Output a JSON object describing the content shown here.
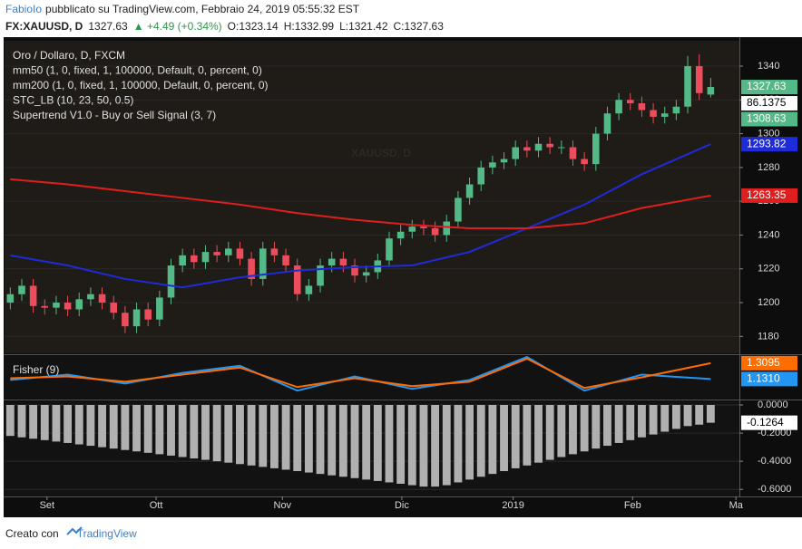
{
  "header": {
    "author": "FabioIo",
    "published": "pubblicato su TradingView.com, Febbraio 24, 2019 05:55:32 EST",
    "symbol": "FX:XAUUSD, D",
    "last": "1327.63",
    "change": "▲ +4.49 (+0.34%)",
    "open": "O:1323.14",
    "high": "H:1332.99",
    "low": "L:1321.42",
    "close": "C:1327.63"
  },
  "footer": {
    "prefix": "Creato con",
    "brand": "TradingView"
  },
  "chart_data": [
    {
      "type": "candlestick",
      "title": "Oro / Dollaro, D, FXCM",
      "watermark": "XAUUSD, D",
      "indicators": [
        "STC_LB (10, 23, 50, 0.5)",
        "Supertrend V1.0 - Buy or Sell Signal (3, 7)"
      ],
      "up_color": "#53b987",
      "down_color": "#eb4d5c",
      "xlim": [
        -0.5,
        63.5
      ],
      "xticks": [
        {
          "value": 3.2,
          "label": "Set"
        },
        {
          "value": 12.7,
          "label": "Ott"
        },
        {
          "value": 23.7,
          "label": "Nov"
        },
        {
          "value": 34.1,
          "label": "Dic"
        },
        {
          "value": 43.8,
          "label": "2019"
        },
        {
          "value": 54.2,
          "label": "Feb"
        },
        {
          "value": 63.2,
          "label": "Ma"
        }
      ],
      "ylim": [
        1170,
        1355
      ],
      "yticks": [
        1180,
        1200,
        1220,
        1240,
        1260,
        1280,
        1300,
        1320,
        1340
      ],
      "open": [
        1200,
        1205,
        1210,
        1198,
        1197,
        1200,
        1196,
        1202,
        1205,
        1200,
        1194,
        1186,
        1196,
        1190,
        1203,
        1222,
        1228,
        1224,
        1230,
        1228,
        1232,
        1226,
        1214,
        1232,
        1228,
        1222,
        1205,
        1210,
        1222,
        1226,
        1222,
        1216,
        1218,
        1225,
        1238,
        1242,
        1245,
        1244,
        1240,
        1248,
        1262,
        1270,
        1280,
        1283,
        1285,
        1292,
        1290,
        1294,
        1292,
        1292,
        1285,
        1282,
        1300,
        1312,
        1320,
        1318,
        1314,
        1310,
        1312,
        1316,
        1340,
        1323.14
      ],
      "high": [
        1209,
        1214,
        1214,
        1202,
        1204,
        1204,
        1206,
        1209,
        1209,
        1204,
        1198,
        1200,
        1200,
        1207,
        1226,
        1232,
        1232,
        1234,
        1234,
        1236,
        1236,
        1230,
        1236,
        1236,
        1232,
        1226,
        1214,
        1226,
        1230,
        1230,
        1226,
        1222,
        1229,
        1242,
        1246,
        1249,
        1249,
        1248,
        1252,
        1266,
        1274,
        1284,
        1287,
        1289,
        1296,
        1296,
        1298,
        1298,
        1296,
        1296,
        1289,
        1304,
        1316,
        1324,
        1324,
        1322,
        1318,
        1316,
        1320,
        1346,
        1347,
        1332.99
      ],
      "low": [
        1196,
        1201,
        1194,
        1193,
        1193,
        1192,
        1192,
        1198,
        1196,
        1190,
        1182,
        1182,
        1186,
        1186,
        1199,
        1218,
        1220,
        1220,
        1224,
        1224,
        1222,
        1210,
        1210,
        1224,
        1218,
        1201,
        1201,
        1206,
        1218,
        1218,
        1212,
        1212,
        1214,
        1221,
        1234,
        1238,
        1240,
        1236,
        1236,
        1244,
        1258,
        1266,
        1276,
        1279,
        1281,
        1286,
        1286,
        1288,
        1288,
        1281,
        1278,
        1278,
        1296,
        1308,
        1314,
        1310,
        1306,
        1306,
        1308,
        1312,
        1320,
        1321.42
      ],
      "close": [
        1205,
        1210,
        1198,
        1197,
        1200,
        1196,
        1202,
        1205,
        1200,
        1194,
        1186,
        1196,
        1190,
        1203,
        1222,
        1228,
        1224,
        1230,
        1228,
        1232,
        1226,
        1214,
        1232,
        1228,
        1222,
        1205,
        1210,
        1222,
        1226,
        1222,
        1216,
        1218,
        1225,
        1238,
        1242,
        1245,
        1244,
        1240,
        1248,
        1262,
        1270,
        1280,
        1283,
        1285,
        1292,
        1290,
        1294,
        1292,
        1292,
        1285,
        1282,
        1300,
        1312,
        1320,
        1318,
        1314,
        1310,
        1312,
        1316,
        1340,
        1324,
        1327.63
      ],
      "series": [
        {
          "name": "mm50 (1, 0, fixed, 1, 100000, Default, 0, percent, 0)",
          "color": "#1e2bd8",
          "x": [
            0,
            5,
            10,
            15,
            20,
            25,
            30,
            35,
            40,
            45,
            50,
            55,
            61
          ],
          "values": [
            1228,
            1222,
            1214,
            1209,
            1215,
            1219,
            1221,
            1222,
            1230,
            1244,
            1258,
            1276,
            1293.82
          ]
        },
        {
          "name": "mm200 (1, 0, fixed, 1, 100000, Default, 0, percent, 0)",
          "color": "#e01e1e",
          "x": [
            0,
            5,
            10,
            15,
            20,
            25,
            30,
            35,
            40,
            45,
            50,
            55,
            61
          ],
          "values": [
            1273,
            1270,
            1266,
            1262,
            1258,
            1253,
            1249,
            1246,
            1244,
            1244,
            1247,
            1256,
            1263.35
          ]
        }
      ],
      "tags": [
        {
          "value": 1327.63,
          "color": "#53b987"
        },
        {
          "value": 1308.63,
          "color": "#53b987"
        },
        {
          "value": 1293.82,
          "color": "#1e2bd8"
        },
        {
          "value": 1263.35,
          "color": "#e01e1e"
        }
      ],
      "stc_value": 86.1375
    },
    {
      "type": "line",
      "title": "Fisher (9)",
      "xlim": [
        -0.5,
        63.5
      ],
      "ylim": [
        0.9,
        1.4
      ],
      "series": [
        {
          "color": "#2196f3",
          "x": [
            0,
            5,
            10,
            15,
            20,
            25,
            30,
            35,
            40,
            45,
            50,
            55,
            61
          ],
          "values": [
            1.12,
            1.18,
            1.08,
            1.2,
            1.28,
            1.0,
            1.16,
            1.02,
            1.12,
            1.38,
            1.0,
            1.18,
            1.131
          ]
        },
        {
          "color": "#ff6d00",
          "x": [
            0,
            5,
            10,
            15,
            20,
            25,
            30,
            35,
            40,
            45,
            50,
            55,
            61
          ],
          "values": [
            1.14,
            1.16,
            1.1,
            1.18,
            1.26,
            1.04,
            1.14,
            1.05,
            1.1,
            1.36,
            1.03,
            1.15,
            1.3095
          ]
        }
      ],
      "tags": [
        {
          "value": 1.3095,
          "color": "#ff6d00"
        },
        {
          "value": 1.131,
          "label": "1.1310",
          "color": "#2196f3"
        }
      ]
    },
    {
      "type": "bar",
      "color": "#b0b0b0",
      "xlim": [
        -0.5,
        63.5
      ],
      "ylim": [
        -0.65,
        0.045
      ],
      "yticks": [
        {
          "value": 0,
          "label": "0.0000"
        },
        {
          "value": -0.2,
          "label": "-0.2000"
        },
        {
          "value": -0.4,
          "label": "-0.4000"
        },
        {
          "value": -0.6,
          "label": "-0.6000"
        }
      ],
      "values": [
        -0.22,
        -0.23,
        -0.24,
        -0.25,
        -0.26,
        -0.27,
        -0.28,
        -0.29,
        -0.3,
        -0.31,
        -0.32,
        -0.33,
        -0.34,
        -0.35,
        -0.36,
        -0.37,
        -0.38,
        -0.39,
        -0.4,
        -0.41,
        -0.42,
        -0.43,
        -0.44,
        -0.45,
        -0.46,
        -0.47,
        -0.48,
        -0.49,
        -0.5,
        -0.51,
        -0.52,
        -0.53,
        -0.54,
        -0.55,
        -0.56,
        -0.57,
        -0.58,
        -0.58,
        -0.57,
        -0.55,
        -0.53,
        -0.51,
        -0.49,
        -0.47,
        -0.45,
        -0.43,
        -0.41,
        -0.39,
        -0.37,
        -0.35,
        -0.33,
        -0.31,
        -0.29,
        -0.27,
        -0.25,
        -0.23,
        -0.21,
        -0.19,
        -0.17,
        -0.15,
        -0.14,
        -0.1264
      ],
      "tags": [
        {
          "value": -0.1264,
          "color": "#ffffff"
        }
      ]
    }
  ]
}
